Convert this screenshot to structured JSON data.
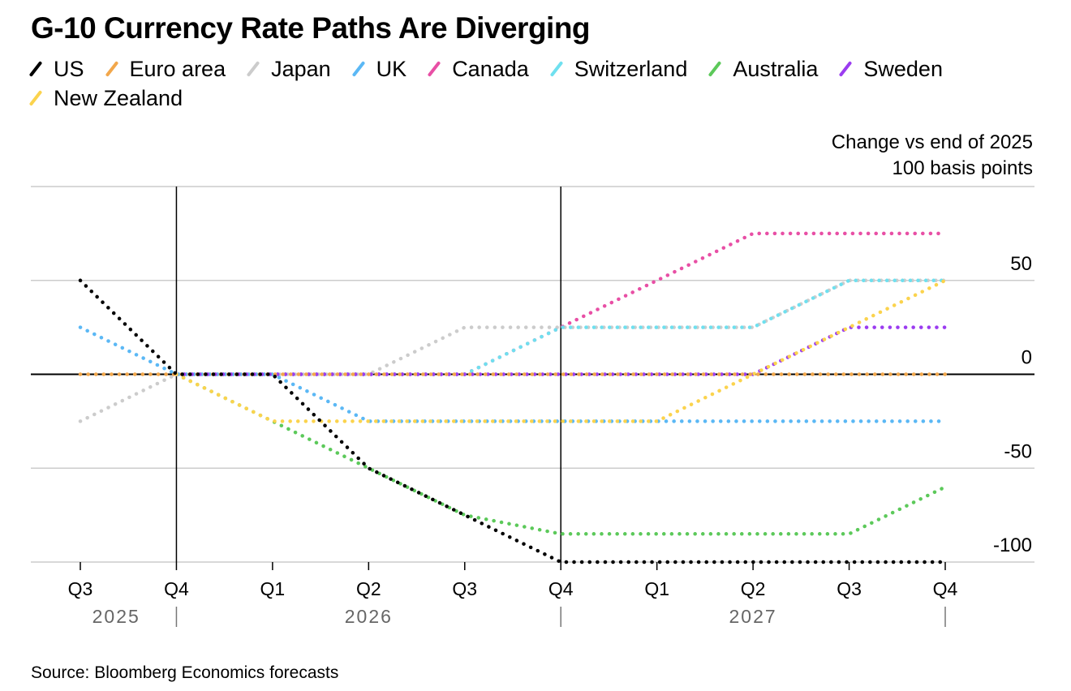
{
  "chart_data": {
    "type": "line",
    "title": "G-10 Currency Rate Paths Are Diverging",
    "unit_label_line1": "Change vs end of 2025",
    "unit_label_line2": "100 basis points",
    "source": "Source: Bloomberg Economics forecasts",
    "x": [
      "Q3 2025",
      "Q4 2025",
      "Q1 2026",
      "Q2 2026",
      "Q3 2026",
      "Q4 2026",
      "Q1 2027",
      "Q2 2027",
      "Q3 2027",
      "Q4 2027"
    ],
    "x_tick_labels": [
      "Q3",
      "Q4",
      "Q1",
      "Q2",
      "Q3",
      "Q4",
      "Q1",
      "Q2",
      "Q3",
      "Q4"
    ],
    "year_labels": [
      "2025",
      "2026",
      "2027"
    ],
    "ylabel": "Change vs end of 2025 (basis points)",
    "ylim": [
      -100,
      100
    ],
    "y_ticks": [
      -100,
      -50,
      0,
      50,
      100
    ],
    "y_tick_labels": [
      "-100",
      "-50",
      "0",
      "50",
      ""
    ],
    "grid": true,
    "legend_position": "top-left",
    "series": [
      {
        "name": "US",
        "color": "#000000",
        "values": [
          50,
          0,
          0,
          -50,
          -75,
          -100,
          -100,
          -100,
          -100,
          -100
        ]
      },
      {
        "name": "Euro area",
        "color": "#f2a74b",
        "values": [
          0,
          0,
          0,
          0,
          0,
          0,
          0,
          0,
          0,
          0
        ]
      },
      {
        "name": "Japan",
        "color": "#cccccc",
        "values": [
          -25,
          0,
          0,
          0,
          25,
          25,
          25,
          25,
          50,
          50
        ]
      },
      {
        "name": "UK",
        "color": "#5bb8f5",
        "values": [
          25,
          0,
          0,
          -25,
          -25,
          -25,
          -25,
          -25,
          -25,
          -25
        ]
      },
      {
        "name": "Canada",
        "color": "#e84fa5",
        "values": [
          null,
          0,
          0,
          0,
          0,
          25,
          50,
          75,
          75,
          75
        ]
      },
      {
        "name": "Switzerland",
        "color": "#6fe0ef",
        "values": [
          null,
          0,
          0,
          0,
          0,
          25,
          25,
          25,
          50,
          50
        ]
      },
      {
        "name": "Australia",
        "color": "#5cc95a",
        "values": [
          null,
          0,
          -25,
          -50,
          -75,
          -85,
          -85,
          -85,
          -85,
          -60
        ]
      },
      {
        "name": "Sweden",
        "color": "#9b3cf0",
        "values": [
          null,
          0,
          0,
          0,
          0,
          0,
          0,
          0,
          25,
          25
        ]
      },
      {
        "name": "New Zealand",
        "color": "#fbd34d",
        "values": [
          null,
          0,
          -25,
          -25,
          -25,
          -25,
          -25,
          0,
          25,
          50
        ]
      }
    ]
  }
}
